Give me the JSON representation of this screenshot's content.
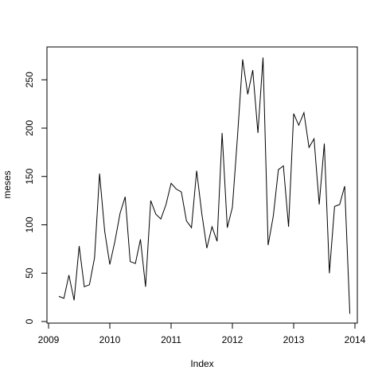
{
  "chart_data": {
    "type": "line",
    "title": "",
    "xlabel": "Index",
    "ylabel": "meses",
    "xlim": [
      2009,
      2014
    ],
    "ylim": [
      0,
      280
    ],
    "x_ticks": [
      "2009",
      "2010",
      "2011",
      "2012",
      "2013",
      "2014"
    ],
    "y_ticks": [
      "0",
      "50",
      "100",
      "150",
      "200",
      "250"
    ],
    "grid": false,
    "line_color": "#000000",
    "series": [
      {
        "x": [
          2009.167,
          2009.25,
          2009.333,
          2009.417,
          2009.5,
          2009.583,
          2009.667,
          2009.75,
          2009.833,
          2009.917,
          2010.0,
          2010.083,
          2010.167,
          2010.25,
          2010.333,
          2010.417,
          2010.5,
          2010.583,
          2010.667,
          2010.75,
          2010.833,
          2010.917,
          2011.0,
          2011.083,
          2011.167,
          2011.25,
          2011.333,
          2011.417,
          2011.5,
          2011.583,
          2011.667,
          2011.75,
          2011.833,
          2011.917,
          2012.0,
          2012.083,
          2012.167,
          2012.25,
          2012.333,
          2012.417,
          2012.5,
          2012.583,
          2012.667,
          2012.75,
          2012.833,
          2012.917,
          2013.0,
          2013.083,
          2013.167,
          2013.25,
          2013.333,
          2013.417,
          2013.5,
          2013.583,
          2013.667,
          2013.75,
          2013.833,
          2013.917
        ],
        "values": [
          26,
          24,
          48,
          22,
          78,
          36,
          38,
          66,
          153,
          93,
          59,
          83,
          112,
          129,
          62,
          60,
          85,
          36,
          125,
          111,
          106,
          121,
          143,
          137,
          134,
          104,
          97,
          156,
          112,
          76,
          98,
          83,
          195,
          97,
          118,
          191,
          271,
          235,
          260,
          195,
          273,
          79,
          109,
          157,
          161,
          98,
          215,
          203,
          216,
          180,
          189,
          121,
          184,
          50,
          119,
          121,
          140,
          8
        ]
      }
    ]
  }
}
